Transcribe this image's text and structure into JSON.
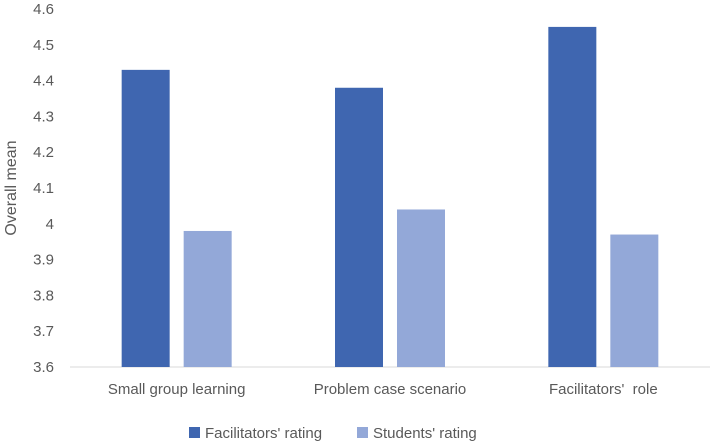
{
  "chart_data": {
    "type": "bar",
    "title": "",
    "xlabel": "",
    "ylabel": "Overall mean",
    "ylim": [
      3.6,
      4.6
    ],
    "yticks": [
      "3.6",
      "3.7",
      "3.8",
      "3.9",
      "4",
      "4.1",
      "4.2",
      "4.3",
      "4.4",
      "4.5",
      "4.6"
    ],
    "categories": [
      "Small group learning",
      "Problem case scenario",
      "Facilitators'  role"
    ],
    "series": [
      {
        "name": "Facilitators' rating",
        "values": [
          4.43,
          4.38,
          4.55
        ],
        "color": "#3F66B0"
      },
      {
        "name": "Students' rating",
        "values": [
          3.98,
          4.04,
          3.97
        ],
        "color": "#93A8D8"
      }
    ],
    "grid": false,
    "legend_position": "bottom"
  }
}
